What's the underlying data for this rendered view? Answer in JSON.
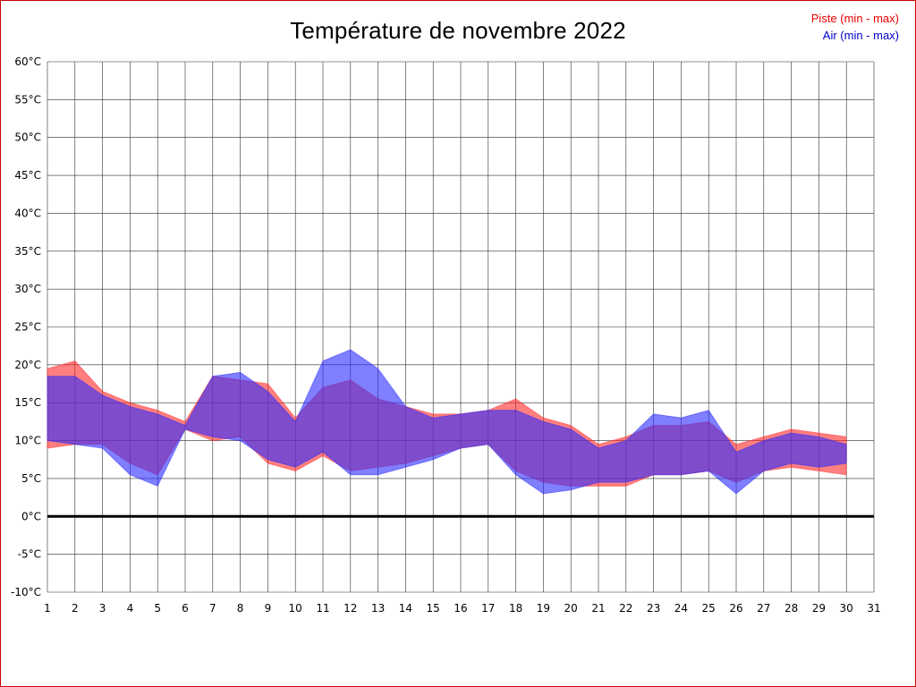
{
  "title": "Température de novembre 2022",
  "legend": [
    {
      "label": "Piste (min - max)",
      "color": "#ee0000"
    },
    {
      "label": "Air (min - max)",
      "color": "#0000cc"
    }
  ],
  "frame": {
    "border_color": "#cc0000",
    "background": "#ffffff"
  },
  "axes": {
    "y_unit_suffix": "°C",
    "x_tick_first": 1,
    "x_tick_last": 31
  },
  "chart_data": {
    "type": "area",
    "title": "Température de novembre 2022",
    "legend_position": "top-right",
    "grid": true,
    "zero_line": true,
    "xlim": [
      1,
      31
    ],
    "ylim": [
      -10,
      60
    ],
    "ytick_step": 5,
    "ytick_suffix": "°C",
    "x": [
      1,
      2,
      3,
      4,
      5,
      6,
      7,
      8,
      9,
      10,
      11,
      12,
      13,
      14,
      15,
      16,
      17,
      18,
      19,
      20,
      21,
      22,
      23,
      24,
      25,
      26,
      27,
      28,
      29,
      30
    ],
    "series": [
      {
        "name": "Piste (min - max)",
        "band_name": "piste-band",
        "color": "#ff2a2a",
        "max": [
          19.5,
          20.5,
          16.5,
          15,
          14,
          12.5,
          18.5,
          18,
          17.5,
          13,
          17,
          18,
          15.5,
          14.5,
          13.5,
          13.5,
          14,
          15.5,
          13,
          12,
          9.5,
          10.5,
          12,
          12,
          12.5,
          9.5,
          10.5,
          11.5,
          11,
          10.5
        ],
        "min": [
          9,
          9.5,
          9.5,
          7,
          5.5,
          11.5,
          10,
          10.5,
          7,
          6,
          8,
          6,
          6.5,
          7,
          8,
          9,
          9.5,
          6,
          4.5,
          4,
          4,
          4,
          5.5,
          5.5,
          6,
          4.5,
          6,
          6.5,
          6,
          5.5
        ]
      },
      {
        "name": "Air (min - max)",
        "band_name": "air-band",
        "color": "#2a2aff",
        "max": [
          18.5,
          18.5,
          16,
          14.5,
          13.5,
          12,
          18.5,
          19,
          16.5,
          12.5,
          20.5,
          22,
          19.5,
          14.5,
          13,
          13.5,
          14,
          14,
          12.5,
          11.5,
          9,
          10,
          13.5,
          13,
          14,
          8.5,
          10,
          11,
          10.5,
          9.5
        ],
        "min": [
          10,
          9.5,
          9,
          5.5,
          4,
          11.5,
          10.5,
          10,
          7.5,
          6.5,
          8.5,
          5.5,
          5.5,
          6.5,
          7.5,
          9,
          9.5,
          5.5,
          3,
          3.5,
          4.5,
          4.5,
          5.5,
          5.5,
          6,
          3,
          6,
          7,
          6.5,
          7
        ]
      }
    ]
  }
}
